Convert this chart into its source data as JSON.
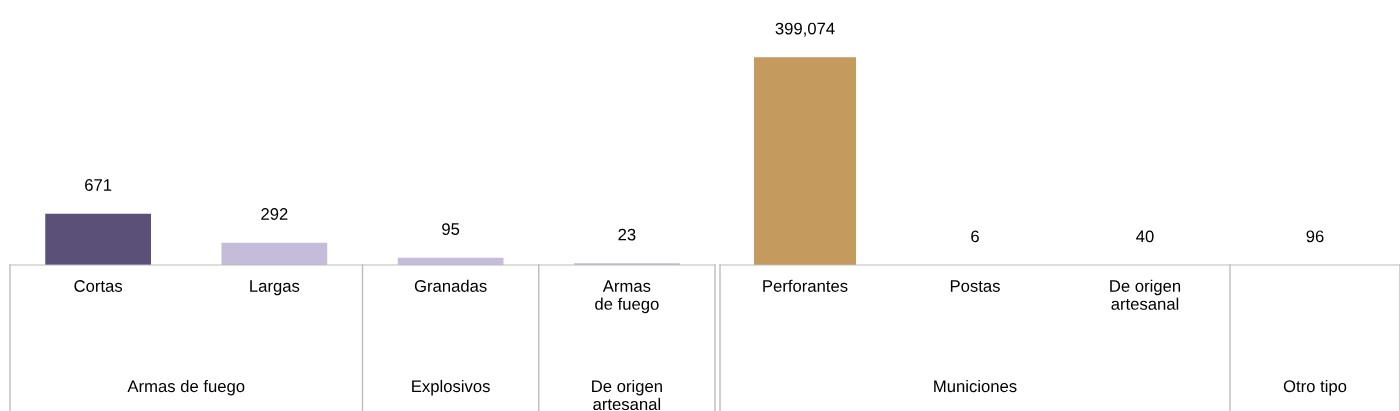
{
  "chart_data": [
    {
      "type": "bar",
      "categories": [
        "Cortas",
        "Largas",
        "Granadas",
        "Armas\nde fuego"
      ],
      "values": [
        671,
        292,
        95,
        23
      ],
      "colors": [
        "#5a5078",
        "#c5bcd9",
        "#c5bcd9",
        "#c5bcd9"
      ],
      "value_labels": [
        "671",
        "292",
        "95",
        "23"
      ],
      "annotations": [
        "Armas de fuego",
        "Explosivos",
        "De origen\nartesanal"
      ]
    },
    {
      "type": "bar",
      "categories": [
        "Perforantes",
        "Postas",
        "De origen\nartesanal",
        null
      ],
      "values": [
        399074,
        6,
        40,
        96
      ],
      "colors": [
        "#c49a5e",
        "#c49a5e",
        "#c49a5e",
        "#c49a5e"
      ],
      "value_labels": [
        "399,074",
        "6",
        "40",
        "96"
      ],
      "annotations": [
        "Municiones",
        "Otro tipo"
      ]
    }
  ]
}
